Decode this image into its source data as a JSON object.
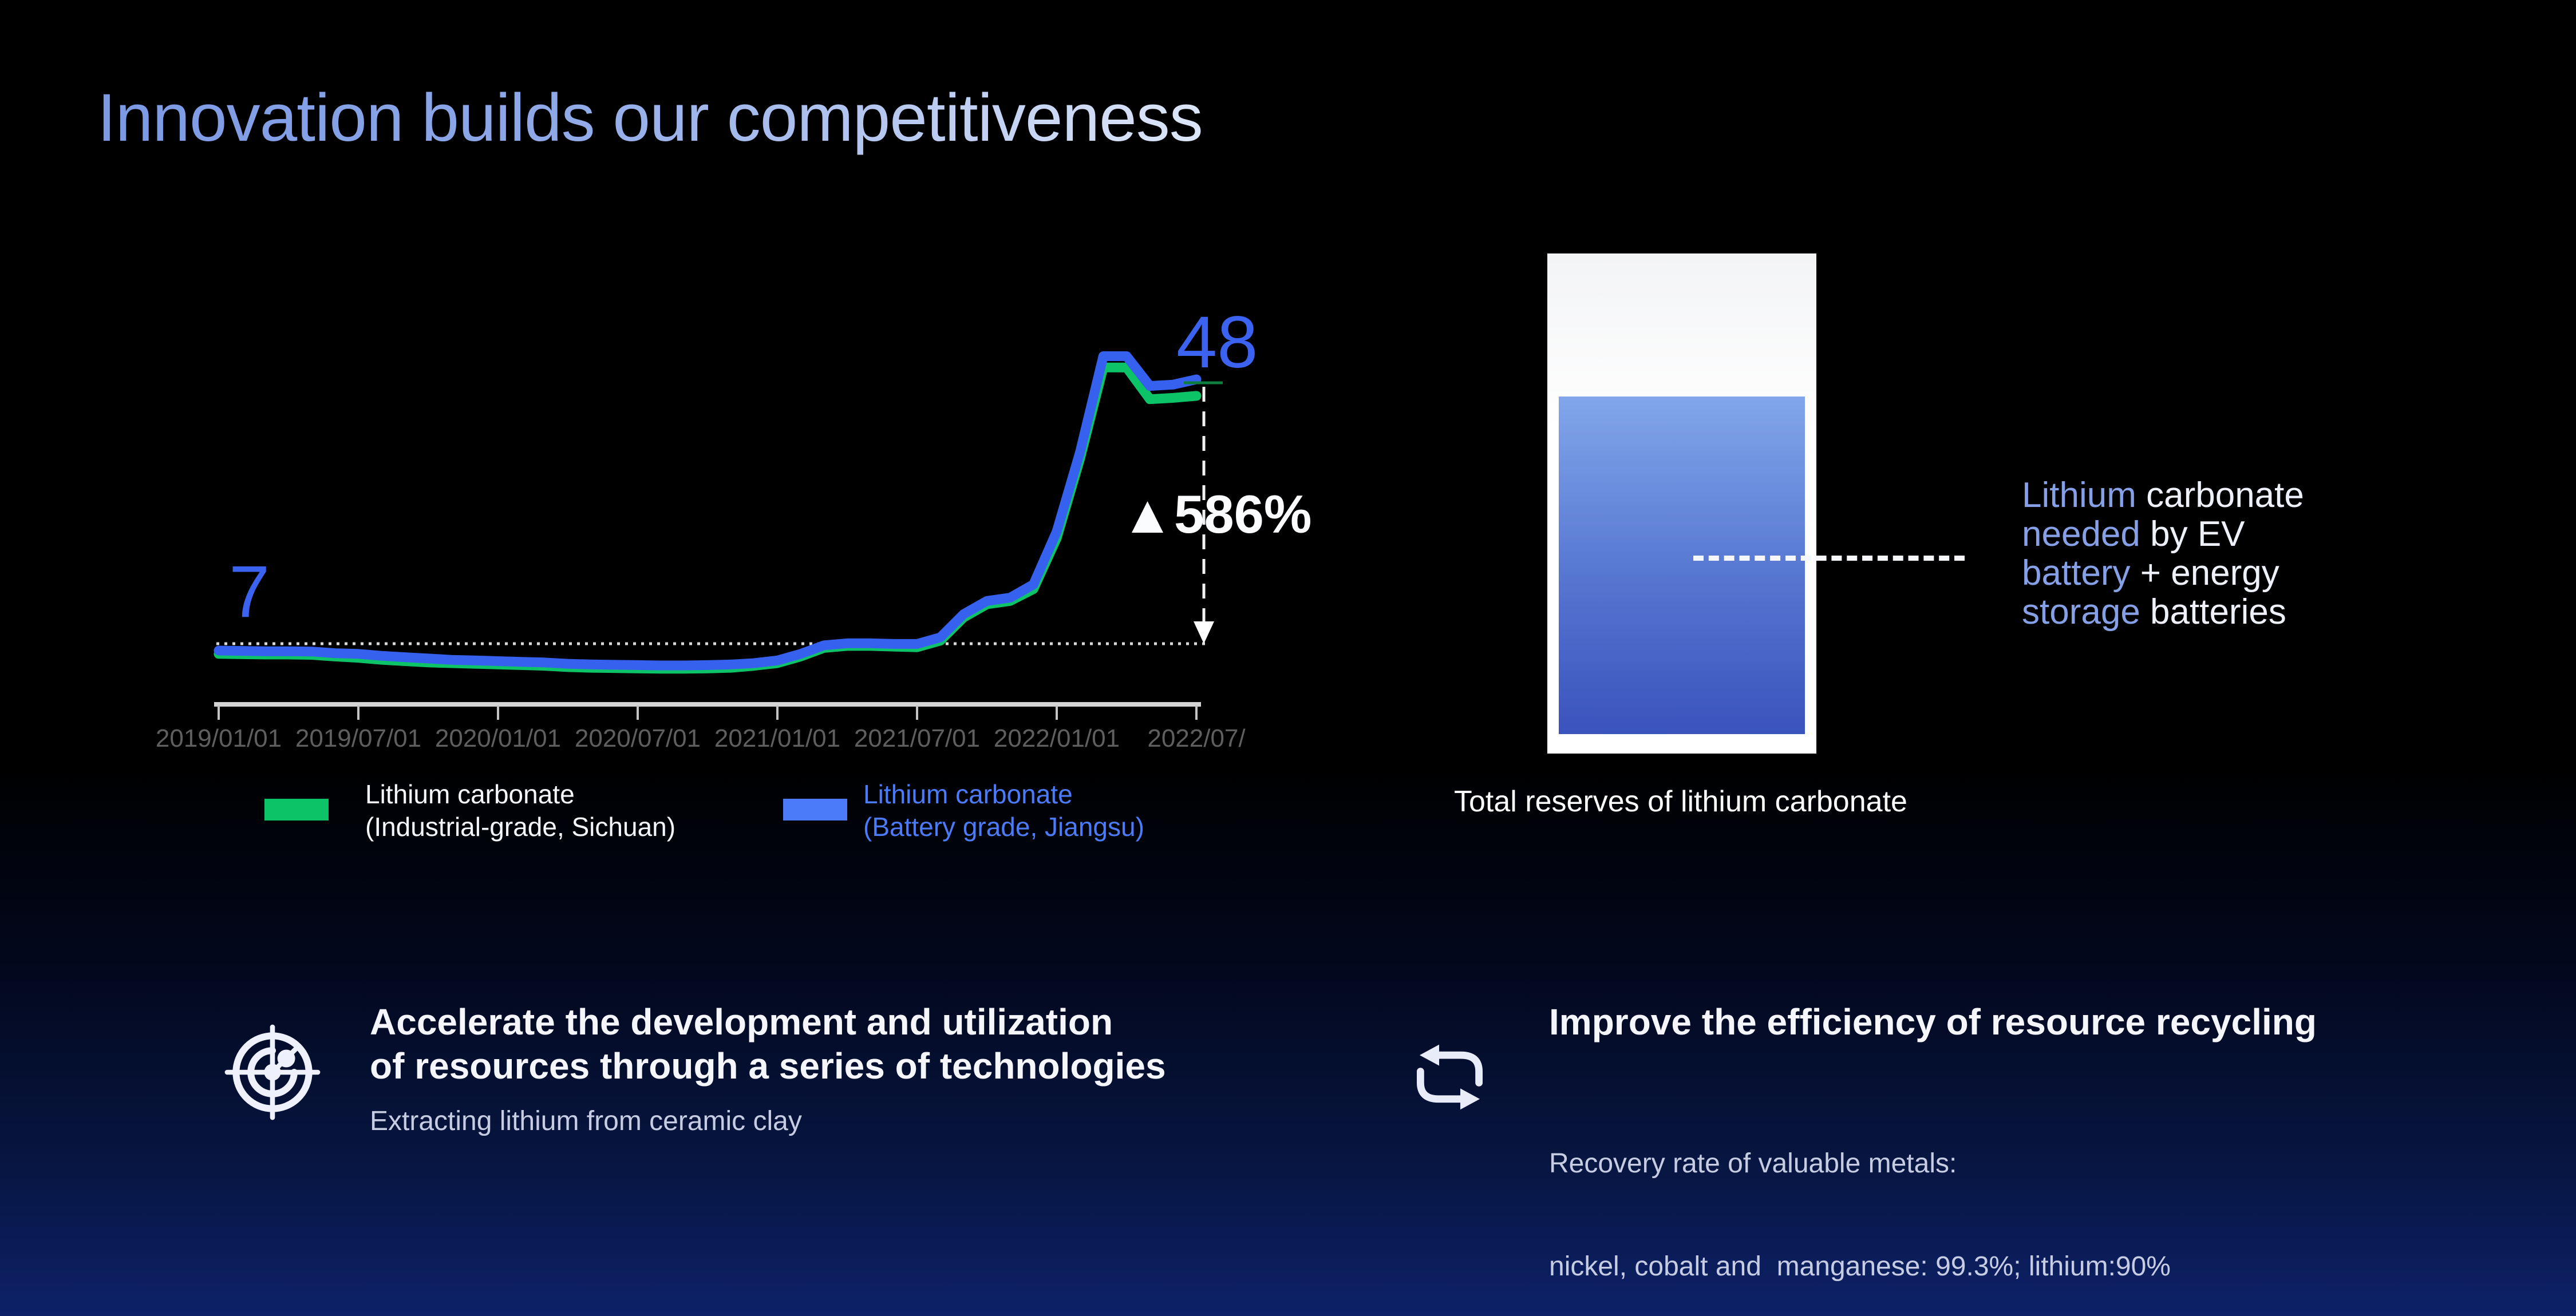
{
  "title": "Innovation builds our competitiveness",
  "colors": {
    "title_gradient_start": "#7b99e4",
    "title_gradient_end": "#dde6f8",
    "big_number_blue": "#3b63f0",
    "line_green": "#0cc368",
    "line_blue": "#3561ee",
    "legend_blue": "#4b7bf8",
    "tank_fill_top": "#82a6ea",
    "tank_fill_bottom": "#3a53bd",
    "background_bottom": "#0d2168"
  },
  "chart": {
    "start_label": "7",
    "end_label": "48",
    "change_label": "▲586%"
  },
  "chart_data": {
    "type": "line",
    "x_months": [
      "2019/01",
      "2019/02",
      "2019/03",
      "2019/04",
      "2019/05",
      "2019/06",
      "2019/07",
      "2019/08",
      "2019/09",
      "2019/10",
      "2019/11",
      "2019/12",
      "2020/01",
      "2020/02",
      "2020/03",
      "2020/04",
      "2020/05",
      "2020/06",
      "2020/07",
      "2020/08",
      "2020/09",
      "2020/10",
      "2020/11",
      "2020/12",
      "2021/01",
      "2021/02",
      "2021/03",
      "2021/04",
      "2021/05",
      "2021/06",
      "2021/07",
      "2021/08",
      "2021/09",
      "2021/10",
      "2021/11",
      "2021/12",
      "2022/01",
      "2022/02",
      "2022/03",
      "2022/04",
      "2022/05",
      "2022/06",
      "2022/07"
    ],
    "tick_labels": [
      "2019/01/01",
      "2019/07/01",
      "2020/01/01",
      "2020/07/01",
      "2021/01/01",
      "2021/07/01",
      "2022/01/01",
      "2022/07/"
    ],
    "series": [
      {
        "name": "Lithium carbonate (Industrial-grade, Sichuan)",
        "color": "#0cc368",
        "values": [
          6.5,
          6.45,
          6.4,
          6.4,
          6.35,
          6.1,
          5.9,
          5.6,
          5.4,
          5.2,
          5.1,
          5.0,
          4.9,
          4.8,
          4.7,
          4.5,
          4.4,
          4.35,
          4.3,
          4.25,
          4.25,
          4.3,
          4.4,
          4.7,
          5.1,
          6.1,
          7.4,
          7.7,
          7.7,
          7.6,
          7.5,
          8.5,
          12.0,
          14.0,
          14.5,
          16.3,
          24.0,
          36.0,
          49.8,
          49.8,
          45.0,
          45.2,
          45.5
        ]
      },
      {
        "name": "Lithium carbonate (Battery grade, Jiangsu)",
        "color": "#3561ee",
        "values": [
          7.0,
          6.95,
          6.9,
          6.9,
          6.85,
          6.6,
          6.5,
          6.2,
          6.0,
          5.8,
          5.6,
          5.5,
          5.4,
          5.3,
          5.2,
          5.0,
          4.9,
          4.85,
          4.8,
          4.75,
          4.75,
          4.8,
          4.9,
          5.1,
          5.5,
          6.5,
          7.8,
          8.1,
          8.1,
          8.0,
          8.0,
          9.0,
          12.5,
          14.5,
          15.0,
          17.0,
          25.0,
          37.0,
          51.5,
          51.5,
          47.0,
          47.2,
          48.0
        ]
      }
    ],
    "annotations": {
      "start_value": 7,
      "end_value": 48,
      "change": "▲586%",
      "reference_line_value": 7
    },
    "ylim": [
      0,
      55
    ],
    "grid": "off",
    "legend_position": "below"
  },
  "legend": {
    "items": [
      {
        "swatch_color": "#0cc368",
        "lines": [
          "Lithium carbonate",
          "(Industrial-grade, Sichuan)"
        ]
      },
      {
        "swatch_color": "#4b7bf8",
        "lines": [
          "Lithium carbonate",
          "(Battery grade, Jiangsu)"
        ]
      }
    ]
  },
  "reservoir": {
    "caption": "Total reserves of lithium carbonate",
    "note_lines": [
      {
        "lead": "Lithium",
        "rest": " carbonate"
      },
      {
        "lead": "needed",
        "rest": " by EV"
      },
      {
        "lead": "battery",
        "rest": " + energy"
      },
      {
        "lead": "storage",
        "rest": " batteries"
      }
    ]
  },
  "items": [
    {
      "icon": "radar-icon",
      "heading_lines": [
        "Accelerate the development and utilization",
        "of resources through a series of technologies"
      ],
      "sub_lines": [
        "Extracting lithium from ceramic clay"
      ]
    },
    {
      "icon": "recycle-icon",
      "heading_lines": [
        "Improve the efficiency of resource recycling"
      ],
      "sub_lines": [
        "Recovery rate of valuable metals:",
        "nickel, cobalt and  manganese: 99.3%; lithium:90%"
      ]
    }
  ]
}
